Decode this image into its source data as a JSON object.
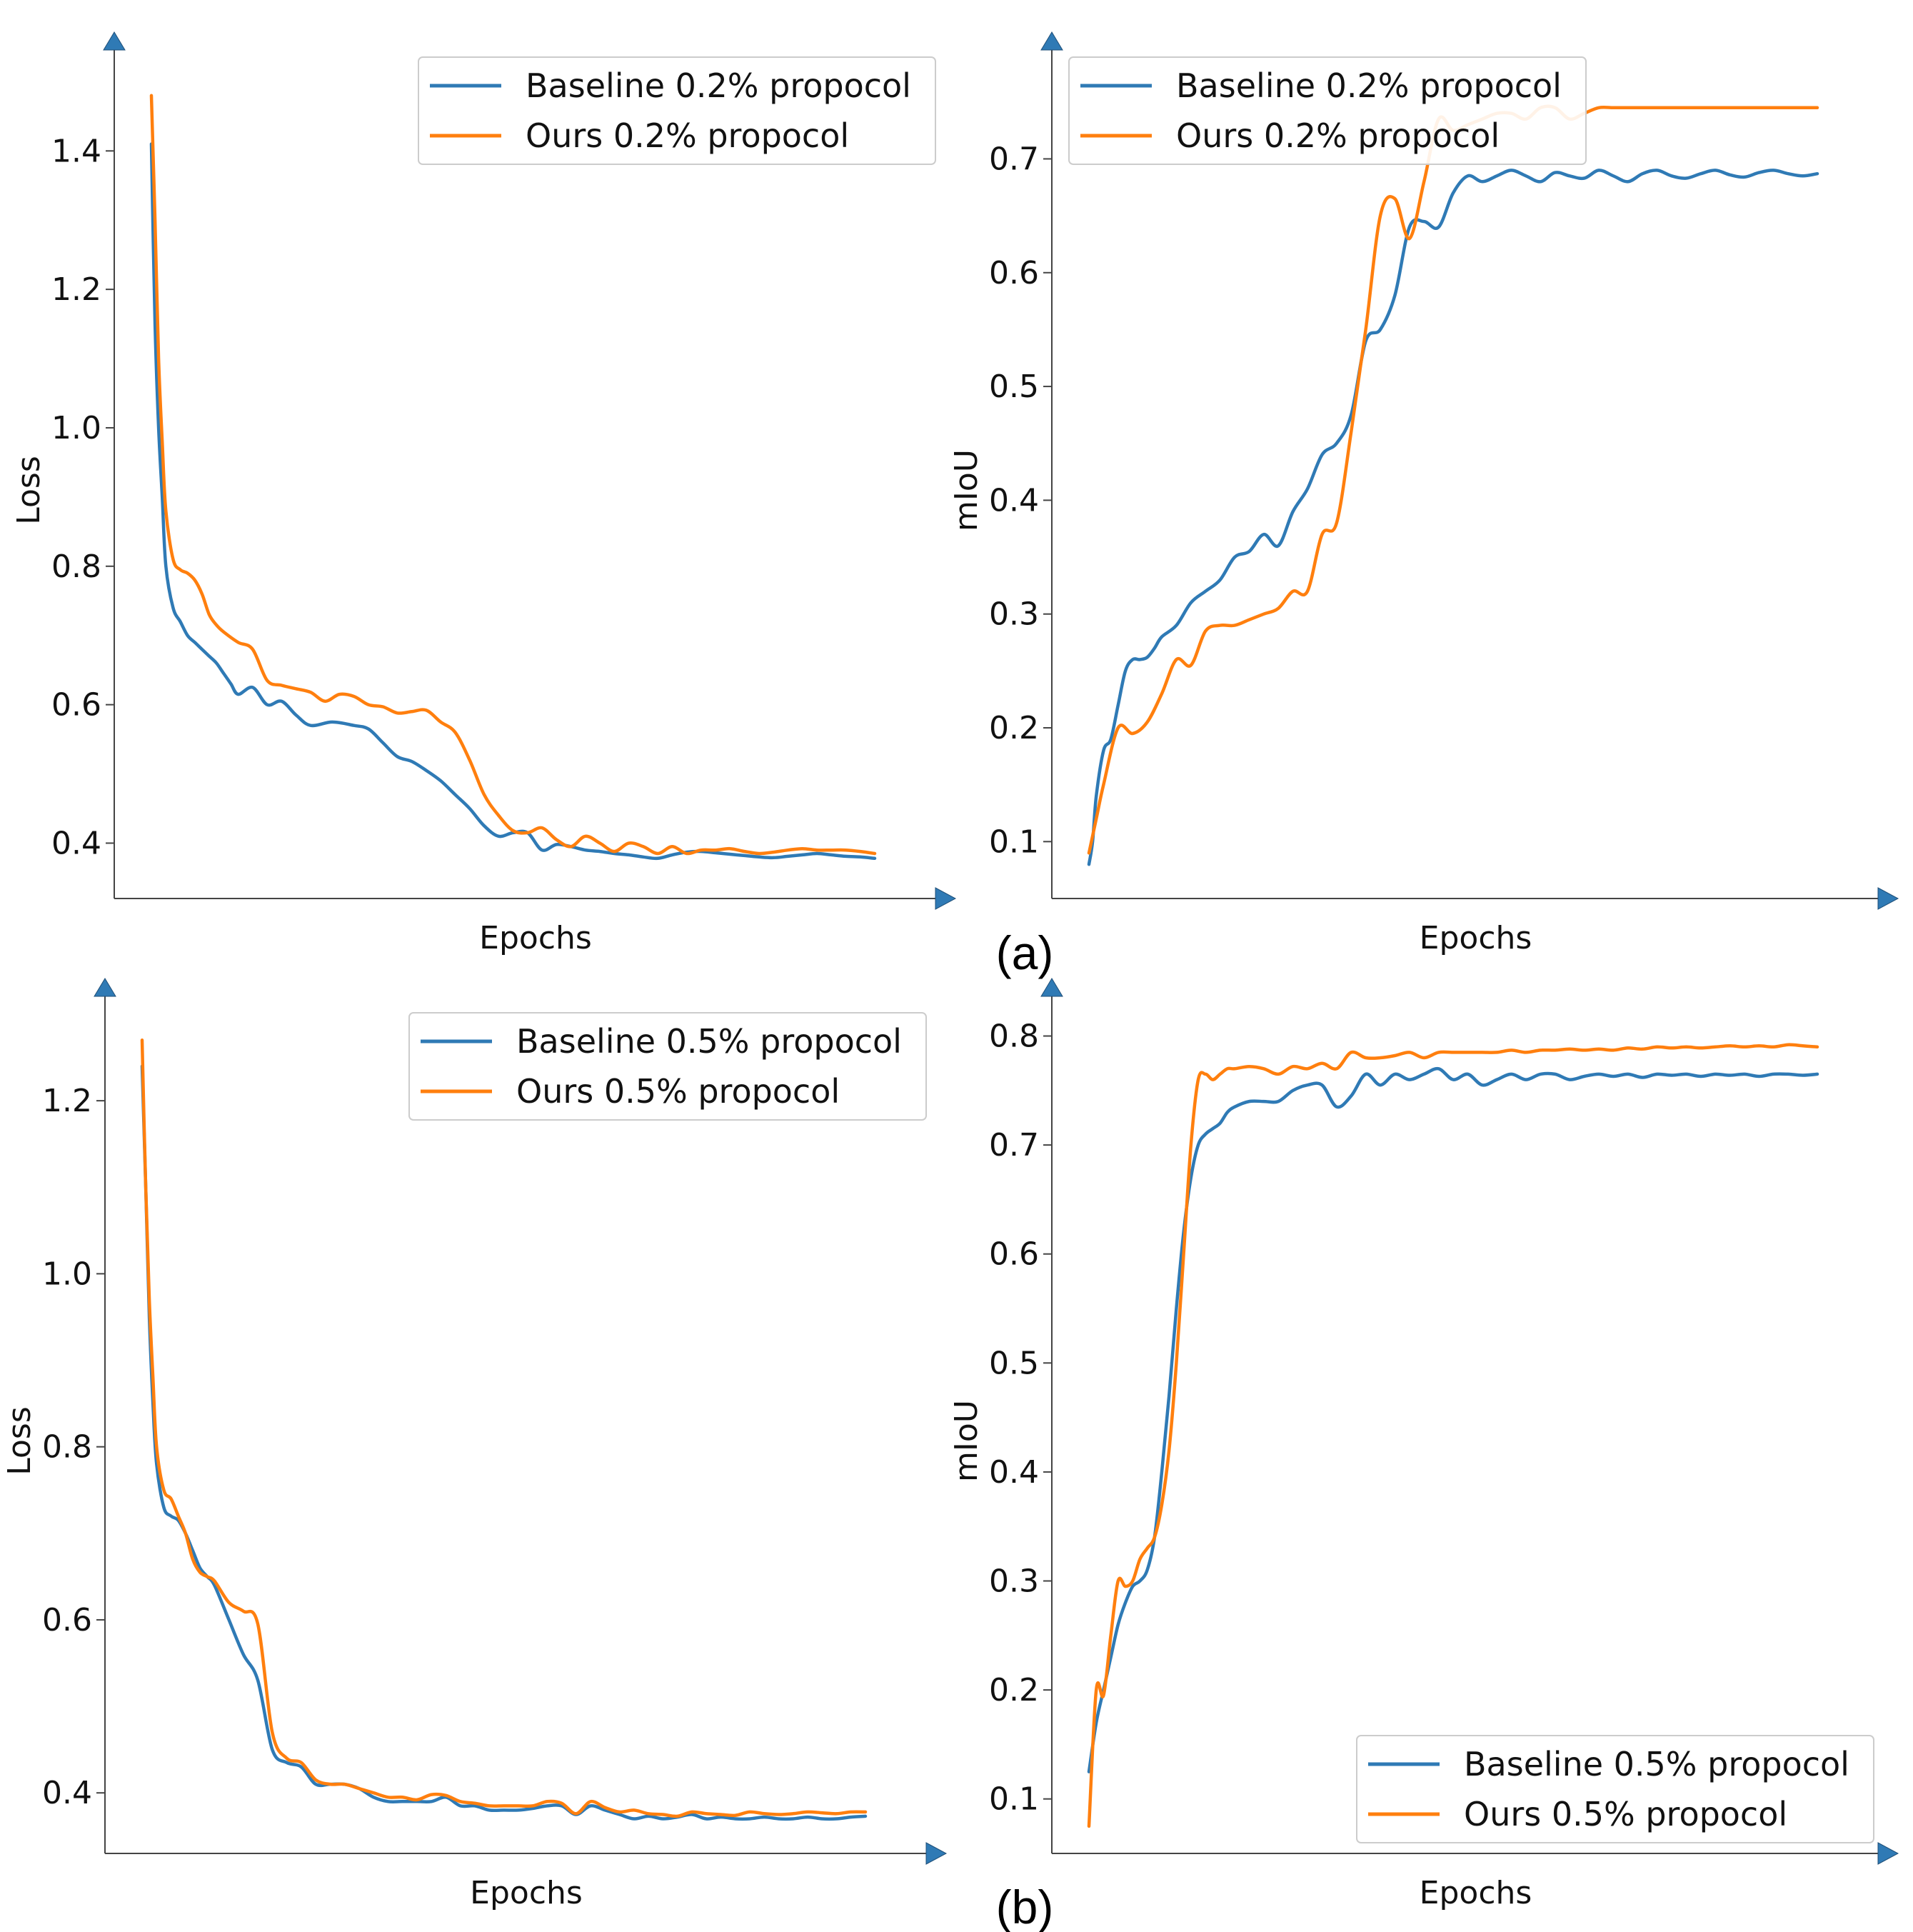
{
  "colors": {
    "baseline": "#2f7ab5",
    "ours": "#ff7f0e",
    "axis": "#444444",
    "arrow": "#2f7ab5",
    "legend_border": "#cccccc"
  },
  "panel_labels": [
    "(a)",
    "(b)"
  ],
  "chart_data": [
    {
      "type": "line",
      "xlabel": "Epochs",
      "ylabel": "Loss",
      "ylim": [
        0.32,
        1.52
      ],
      "yticks": [
        0.4,
        0.6,
        0.8,
        1.0,
        1.2,
        1.4
      ],
      "ytick_labels": [
        "0.4",
        "0.6",
        "0.8",
        "1.0",
        "1.2",
        "1.4"
      ],
      "legend_position": "top-right",
      "grid": false,
      "series": [
        {
          "name": "Baseline 0.2% propocol",
          "x": [
            0,
            0.5,
            1,
            1.5,
            2,
            3,
            4,
            5,
            6,
            7,
            8,
            9,
            10,
            11,
            12,
            14,
            16,
            18,
            20,
            22,
            25,
            28,
            30,
            32,
            34,
            36,
            38,
            40,
            42,
            44,
            46,
            48,
            50,
            52,
            54,
            56,
            58,
            60,
            62,
            64,
            66,
            68,
            70,
            72,
            74,
            76,
            78,
            80,
            82,
            84,
            86,
            88,
            90,
            92,
            94,
            96,
            98,
            100
          ],
          "values": [
            1.41,
            1.15,
            1.0,
            0.9,
            0.8,
            0.74,
            0.72,
            0.7,
            0.69,
            0.68,
            0.67,
            0.66,
            0.645,
            0.63,
            0.615,
            0.625,
            0.6,
            0.605,
            0.585,
            0.57,
            0.575,
            0.57,
            0.565,
            0.545,
            0.525,
            0.518,
            0.505,
            0.49,
            0.47,
            0.45,
            0.425,
            0.41,
            0.415,
            0.415,
            0.39,
            0.398,
            0.395,
            0.39,
            0.388,
            0.385,
            0.383,
            0.38,
            0.378,
            0.383,
            0.387,
            0.388,
            0.386,
            0.384,
            0.382,
            0.38,
            0.379,
            0.381,
            0.383,
            0.385,
            0.383,
            0.381,
            0.38,
            0.378
          ]
        },
        {
          "name": "Ours 0.2% propocol",
          "x": [
            0,
            0.5,
            1,
            1.5,
            2,
            3,
            4,
            5,
            6,
            7,
            8,
            9,
            10,
            12,
            14,
            16,
            18,
            20,
            22,
            24,
            26,
            28,
            30,
            32,
            34,
            36,
            38,
            40,
            42,
            44,
            46,
            48,
            50,
            52,
            54,
            56,
            58,
            60,
            62,
            64,
            66,
            68,
            70,
            72,
            74,
            76,
            78,
            80,
            82,
            84,
            86,
            88,
            90,
            92,
            94,
            96,
            98,
            100
          ],
          "values": [
            1.48,
            1.3,
            1.1,
            0.98,
            0.88,
            0.81,
            0.795,
            0.79,
            0.78,
            0.76,
            0.73,
            0.715,
            0.705,
            0.69,
            0.68,
            0.635,
            0.628,
            0.623,
            0.618,
            0.605,
            0.615,
            0.612,
            0.6,
            0.597,
            0.588,
            0.59,
            0.592,
            0.575,
            0.56,
            0.52,
            0.47,
            0.44,
            0.418,
            0.415,
            0.422,
            0.405,
            0.395,
            0.41,
            0.4,
            0.388,
            0.4,
            0.395,
            0.385,
            0.395,
            0.385,
            0.39,
            0.39,
            0.392,
            0.388,
            0.385,
            0.387,
            0.39,
            0.392,
            0.39,
            0.39,
            0.39,
            0.388,
            0.385
          ]
        }
      ]
    },
    {
      "type": "line",
      "xlabel": "Epochs",
      "ylabel": "mIoU",
      "ylim": [
        0.05,
        0.78
      ],
      "yticks": [
        0.1,
        0.2,
        0.3,
        0.4,
        0.5,
        0.6,
        0.7
      ],
      "ytick_labels": [
        "0.1",
        "0.2",
        "0.3",
        "0.4",
        "0.5",
        "0.6",
        "0.7"
      ],
      "legend_position": "top-left",
      "grid": false,
      "series": [
        {
          "name": "Baseline 0.2% propocol",
          "x": [
            0,
            0.5,
            1,
            2,
            3,
            4,
            5,
            6,
            7,
            8,
            9,
            10,
            12,
            14,
            16,
            18,
            20,
            22,
            24,
            26,
            28,
            30,
            32,
            34,
            36,
            38,
            40,
            42,
            44,
            46,
            48,
            50,
            52,
            54,
            56,
            58,
            60,
            62,
            64,
            66,
            68,
            70,
            72,
            74,
            76,
            78,
            80,
            82,
            84,
            86,
            88,
            90,
            92,
            94,
            96,
            98,
            100
          ],
          "values": [
            0.08,
            0.1,
            0.14,
            0.18,
            0.19,
            0.22,
            0.25,
            0.26,
            0.26,
            0.262,
            0.27,
            0.28,
            0.29,
            0.31,
            0.32,
            0.33,
            0.35,
            0.355,
            0.37,
            0.36,
            0.39,
            0.41,
            0.44,
            0.45,
            0.475,
            0.54,
            0.55,
            0.58,
            0.64,
            0.645,
            0.64,
            0.67,
            0.685,
            0.68,
            0.685,
            0.69,
            0.685,
            0.68,
            0.688,
            0.685,
            0.683,
            0.69,
            0.685,
            0.68,
            0.687,
            0.69,
            0.685,
            0.683,
            0.687,
            0.69,
            0.686,
            0.684,
            0.688,
            0.69,
            0.687,
            0.685,
            0.687
          ]
        },
        {
          "name": "Ours 0.2% propocol",
          "x": [
            0,
            1,
            2,
            4,
            6,
            8,
            10,
            12,
            14,
            16,
            18,
            20,
            22,
            24,
            26,
            28,
            30,
            32,
            34,
            36,
            38,
            40,
            42,
            44,
            46,
            48,
            50,
            52,
            54,
            56,
            58,
            60,
            62,
            64,
            66,
            68,
            70,
            72,
            74,
            76,
            78,
            80,
            82,
            84,
            86,
            88,
            90,
            92,
            94,
            96,
            98,
            100
          ],
          "values": [
            0.09,
            0.12,
            0.15,
            0.2,
            0.195,
            0.205,
            0.23,
            0.26,
            0.255,
            0.285,
            0.29,
            0.29,
            0.295,
            0.3,
            0.305,
            0.32,
            0.32,
            0.37,
            0.38,
            0.46,
            0.55,
            0.65,
            0.665,
            0.63,
            0.68,
            0.735,
            0.725,
            0.73,
            0.735,
            0.74,
            0.74,
            0.735,
            0.745,
            0.745,
            0.735,
            0.74,
            0.745,
            0.745,
            0.745,
            0.745,
            0.745,
            0.745,
            0.745,
            0.745,
            0.745,
            0.745,
            0.745,
            0.745,
            0.745,
            0.745,
            0.745,
            0.745
          ]
        }
      ]
    },
    {
      "type": "line",
      "xlabel": "Epochs",
      "ylabel": "Loss",
      "ylim": [
        0.33,
        1.3
      ],
      "yticks": [
        0.4,
        0.6,
        0.8,
        1.0,
        1.2
      ],
      "ytick_labels": [
        "0.4",
        "0.6",
        "0.8",
        "1.0",
        "1.2"
      ],
      "legend_position": "top-right",
      "grid": false,
      "series": [
        {
          "name": "Baseline 0.5% propocol",
          "x": [
            0,
            0.5,
            1,
            1.5,
            2,
            3,
            4,
            5,
            6,
            7,
            8,
            9,
            10,
            12,
            14,
            16,
            18,
            20,
            22,
            24,
            26,
            28,
            30,
            32,
            34,
            36,
            38,
            40,
            42,
            44,
            46,
            48,
            50,
            52,
            54,
            56,
            58,
            60,
            62,
            64,
            66,
            68,
            70,
            72,
            74,
            76,
            78,
            80,
            82,
            84,
            86,
            88,
            90,
            92,
            94,
            96,
            98,
            100
          ],
          "values": [
            1.24,
            1.1,
            0.95,
            0.85,
            0.78,
            0.73,
            0.72,
            0.715,
            0.7,
            0.68,
            0.66,
            0.65,
            0.64,
            0.6,
            0.56,
            0.53,
            0.45,
            0.435,
            0.43,
            0.41,
            0.41,
            0.41,
            0.405,
            0.395,
            0.39,
            0.39,
            0.39,
            0.39,
            0.395,
            0.385,
            0.385,
            0.38,
            0.38,
            0.38,
            0.382,
            0.385,
            0.385,
            0.375,
            0.385,
            0.38,
            0.375,
            0.37,
            0.373,
            0.37,
            0.372,
            0.375,
            0.37,
            0.372,
            0.37,
            0.37,
            0.372,
            0.37,
            0.37,
            0.372,
            0.37,
            0.37,
            0.372,
            0.373
          ]
        },
        {
          "name": "Ours 0.5% propocol",
          "x": [
            0,
            0.5,
            1,
            1.5,
            2,
            3,
            4,
            5,
            6,
            7,
            8,
            9,
            10,
            12,
            14,
            16,
            18,
            20,
            22,
            24,
            26,
            28,
            30,
            32,
            34,
            36,
            38,
            40,
            42,
            44,
            46,
            48,
            50,
            52,
            54,
            56,
            58,
            60,
            62,
            64,
            66,
            68,
            70,
            72,
            74,
            76,
            78,
            80,
            82,
            84,
            86,
            88,
            90,
            92,
            94,
            96,
            98,
            100
          ],
          "values": [
            1.27,
            1.1,
            0.97,
            0.88,
            0.8,
            0.75,
            0.74,
            0.72,
            0.7,
            0.67,
            0.655,
            0.65,
            0.645,
            0.62,
            0.61,
            0.595,
            0.47,
            0.44,
            0.435,
            0.415,
            0.41,
            0.41,
            0.405,
            0.4,
            0.395,
            0.395,
            0.392,
            0.398,
            0.397,
            0.39,
            0.388,
            0.385,
            0.385,
            0.385,
            0.385,
            0.39,
            0.388,
            0.376,
            0.39,
            0.383,
            0.378,
            0.38,
            0.376,
            0.375,
            0.373,
            0.378,
            0.376,
            0.375,
            0.374,
            0.378,
            0.376,
            0.375,
            0.376,
            0.378,
            0.377,
            0.376,
            0.378,
            0.378
          ]
        }
      ]
    },
    {
      "type": "line",
      "xlabel": "Epochs",
      "ylabel": "mIoU",
      "ylim": [
        0.05,
        0.82
      ],
      "yticks": [
        0.1,
        0.2,
        0.3,
        0.4,
        0.5,
        0.6,
        0.7,
        0.8
      ],
      "ytick_labels": [
        "0.1",
        "0.2",
        "0.3",
        "0.4",
        "0.5",
        "0.6",
        "0.7",
        "0.8"
      ],
      "legend_position": "bottom-right",
      "grid": false,
      "series": [
        {
          "name": "Baseline 0.5% propocol",
          "x": [
            0,
            1,
            2,
            3,
            4,
            5,
            6,
            7,
            8,
            9,
            10,
            11,
            12,
            13,
            14,
            15,
            16,
            17,
            18,
            19,
            20,
            22,
            24,
            26,
            28,
            30,
            32,
            34,
            36,
            38,
            40,
            42,
            44,
            46,
            48,
            50,
            52,
            54,
            56,
            58,
            60,
            62,
            64,
            66,
            68,
            70,
            72,
            74,
            76,
            78,
            80,
            82,
            84,
            86,
            88,
            90,
            92,
            94,
            96,
            98,
            100
          ],
          "values": [
            0.125,
            0.17,
            0.2,
            0.23,
            0.26,
            0.28,
            0.295,
            0.3,
            0.31,
            0.34,
            0.4,
            0.47,
            0.55,
            0.62,
            0.67,
            0.7,
            0.71,
            0.715,
            0.72,
            0.73,
            0.735,
            0.74,
            0.74,
            0.74,
            0.75,
            0.755,
            0.755,
            0.735,
            0.745,
            0.765,
            0.755,
            0.765,
            0.76,
            0.765,
            0.77,
            0.76,
            0.765,
            0.755,
            0.76,
            0.765,
            0.76,
            0.765,
            0.765,
            0.76,
            0.763,
            0.765,
            0.763,
            0.765,
            0.762,
            0.765,
            0.764,
            0.765,
            0.763,
            0.765,
            0.764,
            0.765,
            0.763,
            0.765,
            0.765,
            0.764,
            0.765
          ]
        },
        {
          "name": "Ours 0.5% propocol",
          "x": [
            0,
            1,
            2,
            3,
            4,
            5,
            6,
            7,
            8,
            9,
            10,
            11,
            12,
            13,
            14,
            15,
            16,
            17,
            18,
            19,
            20,
            22,
            24,
            26,
            28,
            30,
            32,
            34,
            36,
            38,
            40,
            42,
            44,
            46,
            48,
            50,
            52,
            54,
            56,
            58,
            60,
            62,
            64,
            66,
            68,
            70,
            72,
            74,
            76,
            78,
            80,
            82,
            84,
            86,
            88,
            90,
            92,
            94,
            96,
            98,
            100
          ],
          "values": [
            0.075,
            0.2,
            0.195,
            0.25,
            0.3,
            0.295,
            0.3,
            0.32,
            0.33,
            0.34,
            0.37,
            0.42,
            0.5,
            0.6,
            0.7,
            0.76,
            0.765,
            0.76,
            0.765,
            0.77,
            0.77,
            0.772,
            0.77,
            0.765,
            0.772,
            0.77,
            0.775,
            0.77,
            0.785,
            0.78,
            0.78,
            0.782,
            0.785,
            0.78,
            0.785,
            0.785,
            0.785,
            0.785,
            0.785,
            0.787,
            0.785,
            0.787,
            0.787,
            0.788,
            0.787,
            0.788,
            0.787,
            0.789,
            0.788,
            0.79,
            0.789,
            0.79,
            0.789,
            0.79,
            0.791,
            0.79,
            0.791,
            0.79,
            0.792,
            0.791,
            0.79
          ]
        }
      ]
    }
  ]
}
